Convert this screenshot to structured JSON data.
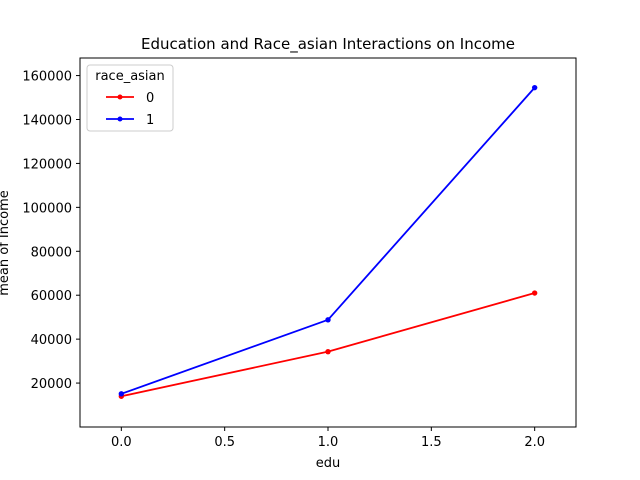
{
  "chart_data": {
    "type": "line",
    "title": "Education and Race_asian Interactions on Income",
    "xlabel": "edu",
    "ylabel": "mean of Income",
    "xlim": [
      -0.2,
      2.2
    ],
    "ylim": [
      0,
      168000
    ],
    "xticks": [
      0.0,
      0.5,
      1.0,
      1.5,
      2.0
    ],
    "xtick_labels": [
      "0.0",
      "0.5",
      "1.0",
      "1.5",
      "2.0"
    ],
    "yticks": [
      20000,
      40000,
      60000,
      80000,
      100000,
      120000,
      140000,
      160000
    ],
    "ytick_labels": [
      "20000",
      "40000",
      "60000",
      "80000",
      "100000",
      "120000",
      "140000",
      "160000"
    ],
    "grid": false,
    "legend": {
      "title": "race_asian",
      "placement": "top-left"
    },
    "series": [
      {
        "name": "0",
        "color": "#ff0000",
        "x": [
          0,
          1,
          2
        ],
        "y": [
          14000,
          34300,
          61000
        ]
      },
      {
        "name": "1",
        "color": "#0000ff",
        "x": [
          0,
          1,
          2
        ],
        "y": [
          15100,
          48800,
          154500
        ]
      }
    ]
  }
}
